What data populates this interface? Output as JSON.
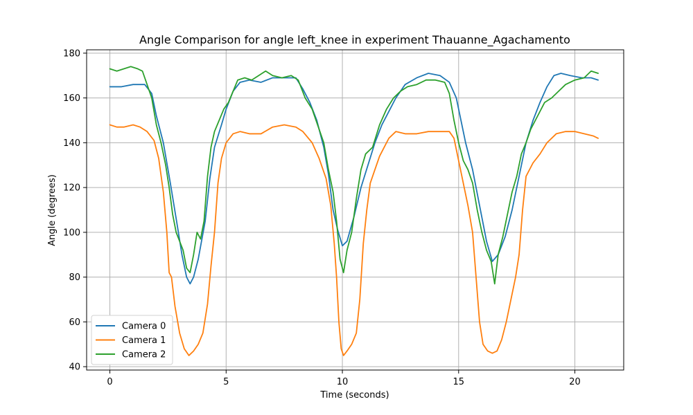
{
  "chart_data": {
    "type": "line",
    "title": "Angle Comparison for angle left_knee in experiment Thauanne_Agachamento",
    "xlabel": "Time (seconds)",
    "ylabel": "Angle (degrees)",
    "xlim": [
      -1.0,
      22.1
    ],
    "ylim": [
      38.5,
      181.5
    ],
    "xticks": [
      0,
      5,
      10,
      15,
      20
    ],
    "yticks": [
      40,
      60,
      80,
      100,
      120,
      140,
      160,
      180
    ],
    "grid": true,
    "legend_position": "lower-left",
    "series": [
      {
        "name": "Camera 0",
        "color": "#1f77b4",
        "points": [
          [
            0,
            165
          ],
          [
            0.5,
            165
          ],
          [
            1.0,
            166
          ],
          [
            1.5,
            166
          ],
          [
            1.8,
            162
          ],
          [
            2.0,
            152
          ],
          [
            2.3,
            140
          ],
          [
            2.6,
            122
          ],
          [
            2.9,
            103
          ],
          [
            3.1,
            90
          ],
          [
            3.3,
            80
          ],
          [
            3.45,
            77
          ],
          [
            3.6,
            80
          ],
          [
            3.8,
            88
          ],
          [
            4.1,
            105
          ],
          [
            4.3,
            124
          ],
          [
            4.5,
            138
          ],
          [
            4.8,
            148
          ],
          [
            5.0,
            155
          ],
          [
            5.3,
            163
          ],
          [
            5.6,
            167
          ],
          [
            6.0,
            168
          ],
          [
            6.5,
            167
          ],
          [
            7.0,
            169
          ],
          [
            7.5,
            169
          ],
          [
            8.0,
            169
          ],
          [
            8.3,
            164
          ],
          [
            8.6,
            158
          ],
          [
            8.9,
            150
          ],
          [
            9.2,
            138
          ],
          [
            9.4,
            126
          ],
          [
            9.6,
            110
          ],
          [
            9.8,
            101
          ],
          [
            10.0,
            94
          ],
          [
            10.2,
            96
          ],
          [
            10.5,
            107
          ],
          [
            10.8,
            120
          ],
          [
            11.1,
            130
          ],
          [
            11.4,
            140
          ],
          [
            11.7,
            148
          ],
          [
            12.0,
            154
          ],
          [
            12.3,
            160
          ],
          [
            12.7,
            166
          ],
          [
            13.2,
            169
          ],
          [
            13.7,
            171
          ],
          [
            14.2,
            170
          ],
          [
            14.6,
            167
          ],
          [
            14.9,
            160
          ],
          [
            15.1,
            150
          ],
          [
            15.3,
            140
          ],
          [
            15.6,
            128
          ],
          [
            15.9,
            112
          ],
          [
            16.2,
            96
          ],
          [
            16.45,
            87
          ],
          [
            16.7,
            90
          ],
          [
            17.0,
            98
          ],
          [
            17.3,
            110
          ],
          [
            17.6,
            125
          ],
          [
            17.9,
            140
          ],
          [
            18.2,
            150
          ],
          [
            18.5,
            158
          ],
          [
            18.8,
            165
          ],
          [
            19.1,
            170
          ],
          [
            19.4,
            171
          ],
          [
            19.8,
            170
          ],
          [
            20.3,
            169
          ],
          [
            20.7,
            169
          ],
          [
            21.0,
            168
          ]
        ]
      },
      {
        "name": "Camera 1",
        "color": "#ff7f0e",
        "points": [
          [
            0,
            148
          ],
          [
            0.3,
            147
          ],
          [
            0.6,
            147
          ],
          [
            1.0,
            148
          ],
          [
            1.3,
            147
          ],
          [
            1.6,
            145
          ],
          [
            1.9,
            141
          ],
          [
            2.1,
            133
          ],
          [
            2.3,
            118
          ],
          [
            2.45,
            100
          ],
          [
            2.55,
            82
          ],
          [
            2.65,
            80
          ],
          [
            2.8,
            67
          ],
          [
            3.0,
            55
          ],
          [
            3.2,
            48
          ],
          [
            3.4,
            45
          ],
          [
            3.6,
            47
          ],
          [
            3.8,
            50
          ],
          [
            4.0,
            55
          ],
          [
            4.2,
            68
          ],
          [
            4.35,
            85
          ],
          [
            4.5,
            100
          ],
          [
            4.65,
            122
          ],
          [
            4.8,
            133
          ],
          [
            5.0,
            140
          ],
          [
            5.3,
            144
          ],
          [
            5.6,
            145
          ],
          [
            6.0,
            144
          ],
          [
            6.5,
            144
          ],
          [
            7.0,
            147
          ],
          [
            7.5,
            148
          ],
          [
            8.0,
            147
          ],
          [
            8.3,
            145
          ],
          [
            8.7,
            140
          ],
          [
            9.0,
            133
          ],
          [
            9.3,
            124
          ],
          [
            9.5,
            112
          ],
          [
            9.65,
            95
          ],
          [
            9.75,
            80
          ],
          [
            9.85,
            60
          ],
          [
            9.95,
            48
          ],
          [
            10.05,
            45
          ],
          [
            10.2,
            47
          ],
          [
            10.4,
            50
          ],
          [
            10.6,
            55
          ],
          [
            10.75,
            70
          ],
          [
            10.9,
            95
          ],
          [
            11.05,
            110
          ],
          [
            11.2,
            122
          ],
          [
            11.4,
            128
          ],
          [
            11.6,
            134
          ],
          [
            11.8,
            138
          ],
          [
            12.0,
            142
          ],
          [
            12.3,
            145
          ],
          [
            12.7,
            144
          ],
          [
            13.2,
            144
          ],
          [
            13.7,
            145
          ],
          [
            14.2,
            145
          ],
          [
            14.6,
            145
          ],
          [
            14.8,
            142
          ],
          [
            15.0,
            132
          ],
          [
            15.2,
            122
          ],
          [
            15.4,
            112
          ],
          [
            15.6,
            100
          ],
          [
            15.75,
            80
          ],
          [
            15.9,
            60
          ],
          [
            16.05,
            50
          ],
          [
            16.25,
            47
          ],
          [
            16.45,
            46
          ],
          [
            16.65,
            47
          ],
          [
            16.85,
            52
          ],
          [
            17.05,
            60
          ],
          [
            17.25,
            70
          ],
          [
            17.45,
            80
          ],
          [
            17.6,
            90
          ],
          [
            17.75,
            110
          ],
          [
            17.9,
            125
          ],
          [
            18.2,
            131
          ],
          [
            18.5,
            135
          ],
          [
            18.8,
            140
          ],
          [
            19.2,
            144
          ],
          [
            19.6,
            145
          ],
          [
            20.0,
            145
          ],
          [
            20.4,
            144
          ],
          [
            20.8,
            143
          ],
          [
            21.0,
            142
          ]
        ]
      },
      {
        "name": "Camera 2",
        "color": "#2ca02c",
        "points": [
          [
            0,
            173
          ],
          [
            0.3,
            172
          ],
          [
            0.6,
            173
          ],
          [
            0.9,
            174
          ],
          [
            1.2,
            173
          ],
          [
            1.4,
            172
          ],
          [
            1.6,
            166
          ],
          [
            1.8,
            160
          ],
          [
            2.0,
            148
          ],
          [
            2.2,
            140
          ],
          [
            2.4,
            130
          ],
          [
            2.55,
            120
          ],
          [
            2.7,
            108
          ],
          [
            2.85,
            100
          ],
          [
            3.0,
            96
          ],
          [
            3.15,
            92
          ],
          [
            3.3,
            84
          ],
          [
            3.45,
            82
          ],
          [
            3.6,
            90
          ],
          [
            3.75,
            100
          ],
          [
            3.9,
            97
          ],
          [
            4.05,
            105
          ],
          [
            4.2,
            125
          ],
          [
            4.35,
            138
          ],
          [
            4.5,
            145
          ],
          [
            4.7,
            150
          ],
          [
            4.9,
            155
          ],
          [
            5.1,
            158
          ],
          [
            5.3,
            163
          ],
          [
            5.5,
            168
          ],
          [
            5.8,
            169
          ],
          [
            6.1,
            168
          ],
          [
            6.4,
            170
          ],
          [
            6.7,
            172
          ],
          [
            7.0,
            170
          ],
          [
            7.4,
            169
          ],
          [
            7.8,
            170
          ],
          [
            8.1,
            168
          ],
          [
            8.4,
            160
          ],
          [
            8.7,
            155
          ],
          [
            9.0,
            146
          ],
          [
            9.2,
            140
          ],
          [
            9.4,
            128
          ],
          [
            9.6,
            118
          ],
          [
            9.75,
            105
          ],
          [
            9.9,
            88
          ],
          [
            10.05,
            82
          ],
          [
            10.2,
            92
          ],
          [
            10.4,
            100
          ],
          [
            10.6,
            115
          ],
          [
            10.8,
            128
          ],
          [
            11.0,
            135
          ],
          [
            11.3,
            138
          ],
          [
            11.6,
            148
          ],
          [
            11.9,
            155
          ],
          [
            12.2,
            160
          ],
          [
            12.5,
            163
          ],
          [
            12.8,
            165
          ],
          [
            13.2,
            166
          ],
          [
            13.6,
            168
          ],
          [
            14.0,
            168
          ],
          [
            14.4,
            167
          ],
          [
            14.6,
            162
          ],
          [
            14.8,
            150
          ],
          [
            15.0,
            140
          ],
          [
            15.2,
            132
          ],
          [
            15.4,
            128
          ],
          [
            15.6,
            122
          ],
          [
            15.8,
            110
          ],
          [
            16.0,
            100
          ],
          [
            16.2,
            92
          ],
          [
            16.4,
            87
          ],
          [
            16.55,
            77
          ],
          [
            16.7,
            90
          ],
          [
            16.9,
            98
          ],
          [
            17.1,
            108
          ],
          [
            17.3,
            118
          ],
          [
            17.5,
            125
          ],
          [
            17.7,
            135
          ],
          [
            17.9,
            140
          ],
          [
            18.1,
            146
          ],
          [
            18.4,
            152
          ],
          [
            18.7,
            158
          ],
          [
            19.0,
            160
          ],
          [
            19.3,
            163
          ],
          [
            19.6,
            166
          ],
          [
            20.0,
            168
          ],
          [
            20.4,
            169
          ],
          [
            20.7,
            172
          ],
          [
            21.0,
            171
          ]
        ]
      }
    ]
  }
}
